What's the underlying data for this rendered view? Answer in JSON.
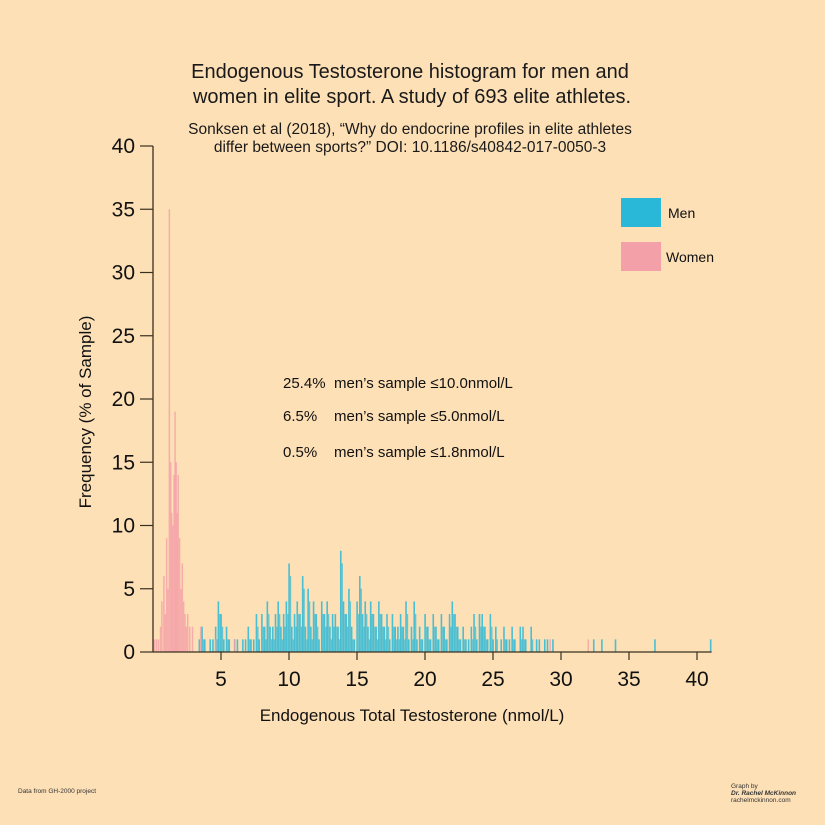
{
  "chart_data": {
    "type": "bar",
    "title": "Endogenous Testosterone histogram for men and women in elite sport. A study of 693 elite athletes.",
    "title_lines": [
      "Endogenous Testosterone histogram for men and",
      "women in elite sport. A study of 693 elite athletes."
    ],
    "subtitle_lines": [
      "Sonksen et al (2018), “Why do endocrine profiles in elite athletes",
      "differ between sports?” DOI: 10.1186/s40842-017-0050-3"
    ],
    "xlabel": "Endogenous Total Testosterone (nmol/L)",
    "ylabel": "Frequency (% of Sample)",
    "xlim": [
      0,
      41
    ],
    "ylim": [
      0,
      40
    ],
    "xticks": [
      5,
      10,
      15,
      20,
      25,
      30,
      35,
      40
    ],
    "yticks": [
      0,
      5,
      10,
      15,
      20,
      25,
      30,
      35,
      40
    ],
    "grid": false,
    "legend_position": "top-right",
    "legend": [
      {
        "name": "Men",
        "color": "#29b8d8"
      },
      {
        "name": "Women",
        "color": "#f4a0a8"
      }
    ],
    "annotations": [
      {
        "pct": "25.4%",
        "text": "men’s sample ≤10.0nmol/L"
      },
      {
        "pct": "6.5%",
        "text": "men’s sample ≤5.0nmol/L"
      },
      {
        "pct": "0.5%",
        "text": "men’s sample ≤1.8nmol/L"
      }
    ],
    "series": [
      {
        "name": "Men",
        "color": "#29b8d8",
        "x_start": 3.4,
        "bin_width": 0.2,
        "values": [
          1,
          2,
          1,
          0,
          1,
          1,
          2,
          4,
          3,
          1,
          2,
          1,
          0,
          1,
          1,
          0,
          1,
          1,
          2,
          1,
          1,
          3,
          1,
          3,
          2,
          4,
          2,
          2,
          3,
          4,
          2,
          3,
          4,
          7,
          2,
          3,
          4,
          3,
          6,
          2,
          5,
          2,
          4,
          3,
          1,
          4,
          3,
          4,
          2,
          3,
          3,
          2,
          8,
          4,
          3,
          5,
          2,
          1,
          4,
          6,
          3,
          4,
          2,
          4,
          3,
          2,
          4,
          3,
          2,
          3,
          1,
          3,
          2,
          2,
          3,
          2,
          4,
          1,
          2,
          4,
          1,
          2,
          1,
          3,
          2,
          1,
          3,
          2,
          1,
          3,
          2,
          1,
          3,
          4,
          3,
          2,
          1,
          2,
          1,
          1,
          2,
          3,
          1,
          3,
          3,
          2,
          1,
          3,
          1,
          2,
          0,
          1,
          2,
          1,
          1,
          2,
          1,
          0,
          2,
          2,
          1,
          0,
          2,
          0,
          1,
          1,
          0,
          1,
          1,
          0,
          1
        ],
        "tail": [
          [
            32.4,
            1
          ],
          [
            33.0,
            1
          ],
          [
            34.0,
            1
          ],
          [
            36.9,
            1
          ],
          [
            41.0,
            1
          ]
        ]
      },
      {
        "name": "Women",
        "color": "#f4a0a8",
        "points": [
          [
            0.1,
            1
          ],
          [
            0.25,
            1
          ],
          [
            0.4,
            1
          ],
          [
            0.55,
            2
          ],
          [
            0.65,
            4
          ],
          [
            0.8,
            6
          ],
          [
            0.9,
            3
          ],
          [
            1.0,
            9
          ],
          [
            1.1,
            5
          ],
          [
            1.2,
            35
          ],
          [
            1.3,
            15
          ],
          [
            1.37,
            11
          ],
          [
            1.45,
            10
          ],
          [
            1.55,
            14
          ],
          [
            1.62,
            19
          ],
          [
            1.7,
            15
          ],
          [
            1.77,
            11
          ],
          [
            1.85,
            14
          ],
          [
            1.95,
            9
          ],
          [
            2.05,
            5
          ],
          [
            2.15,
            7
          ],
          [
            2.25,
            4
          ],
          [
            2.35,
            3
          ],
          [
            2.45,
            2
          ],
          [
            2.55,
            3
          ],
          [
            2.7,
            2
          ],
          [
            2.9,
            2
          ],
          [
            3.5,
            2
          ],
          [
            4.6,
            1
          ],
          [
            6.0,
            1
          ],
          [
            29.2,
            1
          ],
          [
            32.0,
            1
          ]
        ]
      }
    ]
  },
  "footer": {
    "left": "Data from GH-2000 project",
    "credit_lines": [
      "Graph by",
      "Dr. Rachel McKinnon",
      "rachelmckinnon.com"
    ]
  }
}
